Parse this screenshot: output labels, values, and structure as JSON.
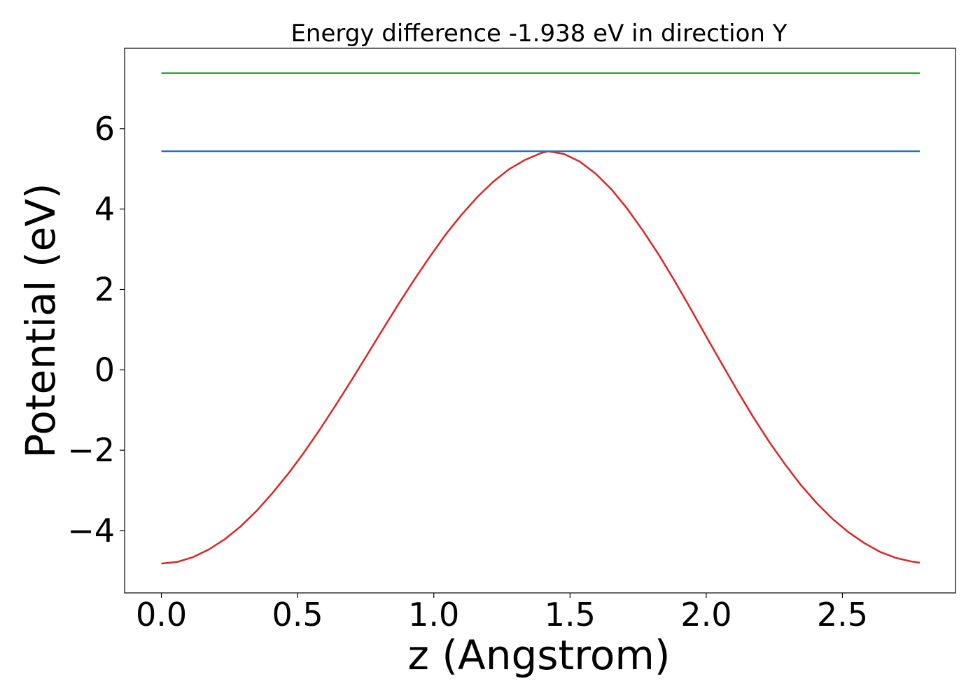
{
  "chart_data": {
    "type": "line",
    "title": "Energy difference -1.938 eV in direction Y",
    "xlabel": "z (Angstrom)",
    "ylabel": "Potential (eV)",
    "xlim": [
      -0.135,
      2.915
    ],
    "ylim": [
      -5.55,
      8.0
    ],
    "xticks": [
      {
        "value": 0.0,
        "label": "0.0"
      },
      {
        "value": 0.5,
        "label": "0.5"
      },
      {
        "value": 1.0,
        "label": "1.0"
      },
      {
        "value": 1.5,
        "label": "1.5"
      },
      {
        "value": 2.0,
        "label": "2.0"
      },
      {
        "value": 2.5,
        "label": "2.5"
      }
    ],
    "yticks": [
      {
        "value": -4,
        "label": "−4"
      },
      {
        "value": -2,
        "label": "−2"
      },
      {
        "value": 0,
        "label": "0"
      },
      {
        "value": 2,
        "label": "2"
      },
      {
        "value": 4,
        "label": "4"
      },
      {
        "value": 6,
        "label": "6"
      }
    ],
    "grid": false,
    "series": [
      {
        "color": "#d62728",
        "x": [
          0.0,
          0.058,
          0.116,
          0.174,
          0.232,
          0.29,
          0.348,
          0.406,
          0.464,
          0.522,
          0.58,
          0.638,
          0.696,
          0.754,
          0.812,
          0.87,
          0.928,
          0.986,
          1.044,
          1.102,
          1.16,
          1.218,
          1.276,
          1.334,
          1.392,
          1.42,
          1.478,
          1.536,
          1.594,
          1.652,
          1.71,
          1.768,
          1.826,
          1.884,
          1.942,
          2.0,
          2.058,
          2.116,
          2.174,
          2.232,
          2.29,
          2.348,
          2.406,
          2.464,
          2.522,
          2.58,
          2.638,
          2.696,
          2.754,
          2.784
        ],
        "y": [
          -4.82,
          -4.78,
          -4.66,
          -4.47,
          -4.22,
          -3.9,
          -3.52,
          -3.08,
          -2.6,
          -2.07,
          -1.5,
          -0.9,
          -0.28,
          0.36,
          1.0,
          1.63,
          2.24,
          2.82,
          3.37,
          3.86,
          4.3,
          4.68,
          4.99,
          5.22,
          5.39,
          5.44,
          5.37,
          5.18,
          4.88,
          4.49,
          4.01,
          3.46,
          2.86,
          2.21,
          1.53,
          0.83,
          0.14,
          -0.54,
          -1.19,
          -1.8,
          -2.36,
          -2.87,
          -3.32,
          -3.71,
          -4.04,
          -4.31,
          -4.53,
          -4.68,
          -4.77,
          -4.8
        ]
      },
      {
        "color": "#1f77b4",
        "x": [
          0.0,
          2.784
        ],
        "y": [
          5.44,
          5.44
        ]
      },
      {
        "color": "#2ca02c",
        "x": [
          0.0,
          2.784
        ],
        "y": [
          7.38,
          7.38
        ]
      }
    ]
  }
}
